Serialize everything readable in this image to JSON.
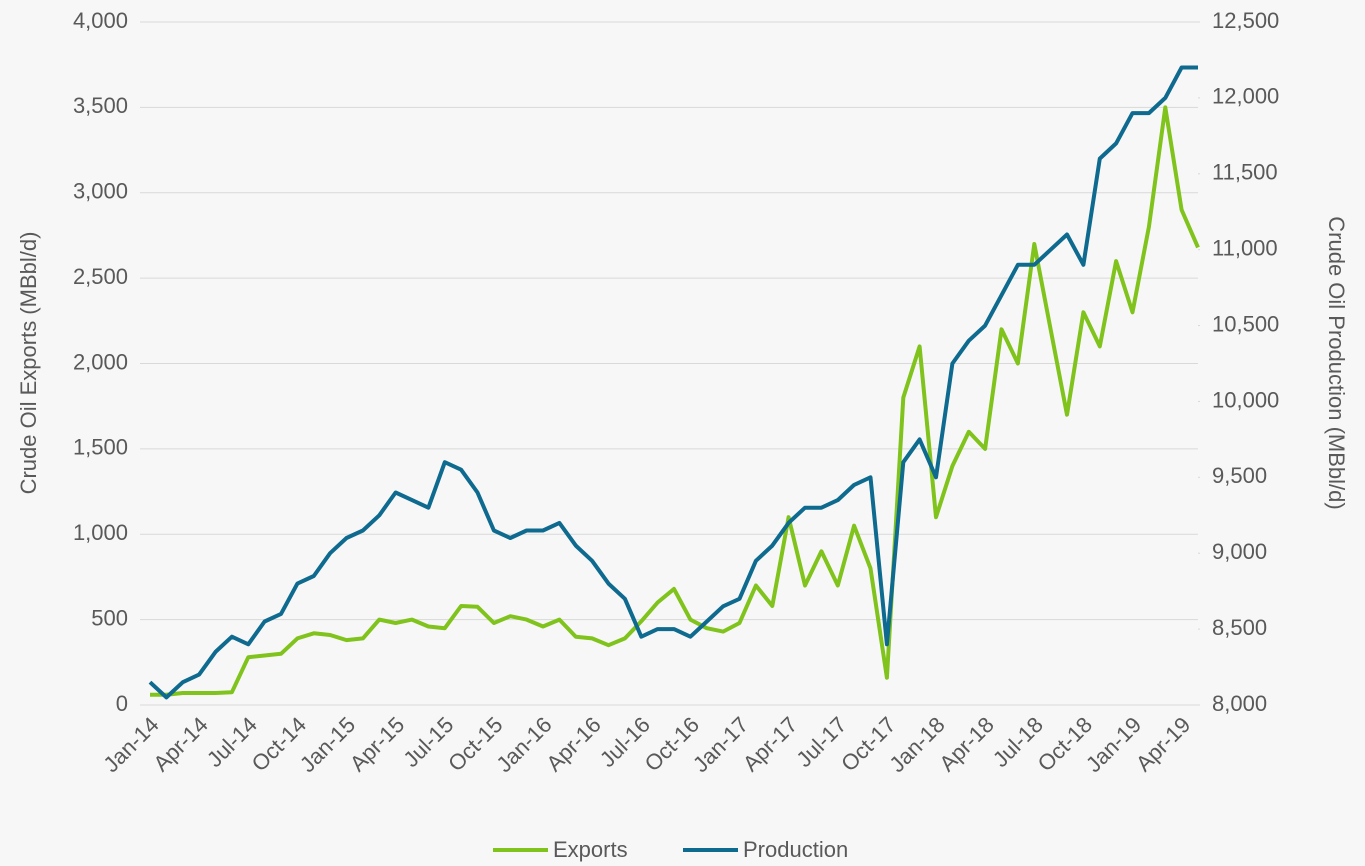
{
  "chart_data": {
    "type": "line",
    "y_label": "Crude Oil Exports (MBbl/d)",
    "y2_label": "Crude Oil Production (MBbl/d)",
    "categories": [
      "Jan-14",
      null,
      null,
      "Apr-14",
      null,
      null,
      "Jul-14",
      null,
      null,
      "Oct-14",
      null,
      null,
      "Jan-15",
      null,
      null,
      "Apr-15",
      null,
      null,
      "Jul-15",
      null,
      null,
      "Oct-15",
      null,
      null,
      "Jan-16",
      null,
      null,
      "Apr-16",
      null,
      null,
      "Jul-16",
      null,
      null,
      "Oct-16",
      null,
      null,
      "Jan-17",
      null,
      null,
      "Apr-17",
      null,
      null,
      "Jul-17",
      null,
      null,
      "Oct-17",
      null,
      null,
      "Jan-18",
      null,
      null,
      "Apr-18",
      null,
      null,
      "Jul-18",
      null,
      null,
      "Oct-18",
      null,
      null,
      "Jan-19",
      null,
      null,
      "Apr-19",
      null
    ],
    "series": [
      {
        "name": "Exports",
        "color": "#80c31c",
        "values": [
          60,
          60,
          70,
          70,
          70,
          75,
          280,
          290,
          300,
          390,
          420,
          410,
          380,
          390,
          500,
          480,
          500,
          460,
          450,
          580,
          575,
          480,
          520,
          500,
          460,
          500,
          400,
          390,
          350,
          390,
          490,
          600,
          680,
          500,
          450,
          430,
          480,
          700,
          580,
          1100,
          700,
          900,
          700,
          1050,
          800,
          160,
          1800,
          2100,
          1100,
          1400,
          1600,
          1500,
          2200,
          2000,
          2700,
          2200,
          1700,
          2300,
          2100,
          2600,
          2300,
          2800,
          3500,
          2900,
          2680
        ]
      },
      {
        "name": "Production",
        "color": "#0e6a8e",
        "axis": "y2",
        "values": [
          8150,
          8050,
          8150,
          8200,
          8350,
          8450,
          8400,
          8550,
          8600,
          8800,
          8850,
          9000,
          9100,
          9150,
          9250,
          9400,
          9350,
          9300,
          9600,
          9550,
          9400,
          9150,
          9100,
          9150,
          9150,
          9200,
          9050,
          8950,
          8800,
          8700,
          8450,
          8500,
          8500,
          8450,
          8550,
          8650,
          8700,
          8950,
          9050,
          9200,
          9300,
          9300,
          9350,
          9450,
          9500,
          8400,
          9600,
          9750,
          9500,
          10250,
          10400,
          10500,
          10700,
          10900,
          10900,
          11000,
          11100,
          10900,
          11600,
          11700,
          11900,
          11900,
          12000,
          12200,
          12200
        ]
      }
    ],
    "ylim": [
      0,
      4000
    ],
    "yticks": [
      0,
      500,
      {
        "value": 1000,
        "label": "1,000"
      },
      {
        "value": 1500,
        "label": "1,500"
      },
      {
        "value": 2000,
        "label": "2,000"
      },
      {
        "value": 2500,
        "label": "2,500"
      },
      {
        "value": 3000,
        "label": "3,000"
      },
      {
        "value": 3500,
        "label": "3,500"
      },
      {
        "value": 4000,
        "label": "4,000"
      }
    ],
    "y2lim": [
      8000,
      12500
    ],
    "y2ticks": [
      {
        "value": 8000,
        "label": "8,000"
      },
      {
        "value": 8500,
        "label": "8,500"
      },
      {
        "value": 9000,
        "label": "9,000"
      },
      {
        "value": 9500,
        "label": "9,500"
      },
      {
        "value": 10000,
        "label": "10,000"
      },
      {
        "value": 10500,
        "label": "10,500"
      },
      {
        "value": 11000,
        "label": "11,000"
      },
      {
        "value": 11500,
        "label": "11,500"
      },
      {
        "value": 12000,
        "label": "12,000"
      },
      {
        "value": 12500,
        "label": "12,500"
      }
    ],
    "grid": true,
    "legend": "bottom"
  }
}
